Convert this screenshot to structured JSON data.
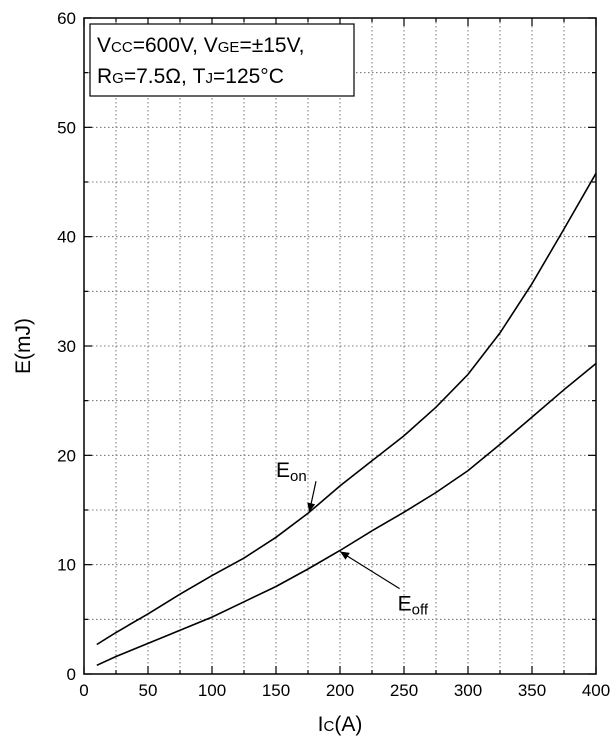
{
  "chart_data": {
    "type": "line",
    "title": "",
    "xlabel": {
      "main": "I",
      "sub": "C",
      "suffix": "(A)"
    },
    "ylabel": "E(mJ)",
    "xlim": [
      0,
      400
    ],
    "ylim": [
      0,
      60
    ],
    "x_ticks": [
      0,
      50,
      100,
      150,
      200,
      250,
      300,
      350,
      400
    ],
    "y_ticks": [
      0,
      10,
      20,
      30,
      40,
      50,
      60
    ],
    "x_minor_step": 25,
    "y_minor_step": 5,
    "grid": true,
    "conditions": {
      "line1": [
        {
          "main": "V",
          "sub": "CC",
          "tail": "=600V, "
        },
        {
          "main": "V",
          "sub": "GE",
          "tail": "=±15V,"
        }
      ],
      "line2": [
        {
          "main": "R",
          "sub": "G",
          "tail": "=7.5Ω, "
        },
        {
          "main": "T",
          "sub": "J",
          "tail": "=125°C"
        }
      ],
      "placement": "top-left"
    },
    "series": [
      {
        "label_main": "E",
        "label_sub": "on",
        "label_at": [
          150,
          18
        ],
        "arrow_to": [
          176,
          14.8
        ],
        "x": [
          10,
          25,
          50,
          75,
          100,
          125,
          150,
          175,
          200,
          225,
          250,
          275,
          300,
          325,
          350,
          375,
          400
        ],
        "y": [
          2.7,
          3.8,
          5.5,
          7.3,
          9.0,
          10.6,
          12.5,
          14.7,
          17.2,
          19.5,
          21.8,
          24.4,
          27.4,
          31.2,
          35.7,
          40.7,
          45.8
        ]
      },
      {
        "label_main": "E",
        "label_sub": "off",
        "label_at": [
          245,
          5.8
        ],
        "arrow_to": [
          200,
          11.2
        ],
        "x": [
          10,
          25,
          50,
          75,
          100,
          125,
          150,
          175,
          200,
          225,
          250,
          275,
          300,
          325,
          350,
          375,
          400
        ],
        "y": [
          0.8,
          1.6,
          2.8,
          4.0,
          5.2,
          6.6,
          8.0,
          9.6,
          11.3,
          13.1,
          14.8,
          16.6,
          18.6,
          21.0,
          23.5,
          26.0,
          28.4
        ]
      }
    ]
  }
}
